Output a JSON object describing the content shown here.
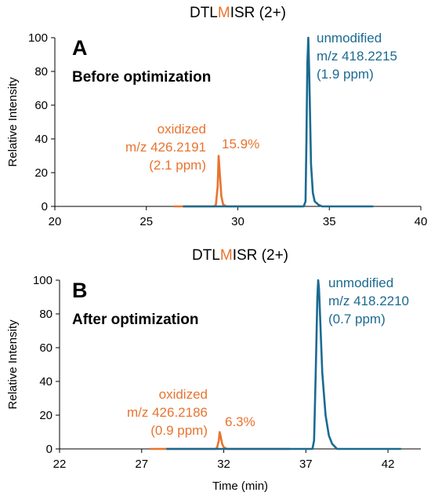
{
  "chart_data": [
    {
      "type": "line",
      "panel_letter": "A",
      "panel_label": "Before optimization",
      "title": {
        "prefix": "DTL",
        "highlight": "M",
        "suffix": "ISR (2+)"
      },
      "xlabel": "",
      "ylabel": "Relative Intensity",
      "xlim": [
        20,
        40
      ],
      "ylim": [
        0,
        100
      ],
      "x_ticks": [
        20,
        25,
        30,
        35,
        40
      ],
      "y_ticks": [
        0,
        20,
        40,
        60,
        80,
        100
      ],
      "grid": false,
      "highlight_color": "#E8742F",
      "series": [
        {
          "key": "oxidized",
          "color": "#E8742F",
          "x": [
            26.5,
            28.7,
            28.8,
            28.9,
            28.95,
            29.0,
            29.1,
            29.2,
            29.4,
            33.5
          ],
          "y": [
            0,
            0,
            1,
            12,
            30,
            22,
            6,
            1,
            0,
            0
          ],
          "label_lines": [
            "oxidized",
            "m/z 426.2191",
            "(2.1 ppm)"
          ],
          "percent_label": "15.9%"
        },
        {
          "key": "unmodified",
          "color": "#1B6A91",
          "x": [
            27.0,
            33.6,
            33.7,
            33.75,
            33.8,
            33.85,
            33.9,
            34.0,
            34.1,
            34.2,
            34.4,
            34.6,
            37.4
          ],
          "y": [
            0,
            0,
            3,
            40,
            85,
            100,
            80,
            25,
            8,
            3,
            1,
            0,
            0
          ],
          "label_lines": [
            "unmodified",
            "m/z 418.2215",
            "(1.9 ppm)"
          ]
        }
      ]
    },
    {
      "type": "line",
      "panel_letter": "B",
      "panel_label": "After optimization",
      "title": {
        "prefix": "DTL",
        "highlight": "M",
        "suffix": "ISR (2+)"
      },
      "xlabel": "Time (min)",
      "ylabel": "Relative Intensity",
      "xlim": [
        22,
        44
      ],
      "ylim": [
        0,
        100
      ],
      "x_ticks": [
        22,
        27,
        32,
        37,
        42
      ],
      "y_ticks": [
        0,
        20,
        40,
        60,
        80,
        100
      ],
      "grid": false,
      "highlight_color": "#E8742F",
      "series": [
        {
          "key": "oxidized",
          "color": "#E8742F",
          "x": [
            27.5,
            31.5,
            31.6,
            31.7,
            31.75,
            31.8,
            31.9,
            32.0,
            32.2,
            36.0
          ],
          "y": [
            0,
            0,
            1,
            5,
            10,
            8,
            3,
            1,
            0,
            0
          ],
          "label_lines": [
            "oxidized",
            "m/z 426.2186",
            "(0.9 ppm)"
          ],
          "percent_label": "6.3%"
        },
        {
          "key": "unmodified",
          "color": "#1B6A91",
          "x": [
            28.5,
            37.4,
            37.5,
            37.6,
            37.7,
            37.75,
            37.8,
            37.9,
            38.0,
            38.2,
            38.4,
            38.6,
            38.9,
            42.8
          ],
          "y": [
            0,
            0,
            5,
            45,
            90,
            100,
            95,
            70,
            45,
            20,
            8,
            3,
            0,
            0
          ],
          "label_lines": [
            "unmodified",
            "m/z 418.2210",
            "(0.7 ppm)"
          ]
        }
      ]
    }
  ]
}
